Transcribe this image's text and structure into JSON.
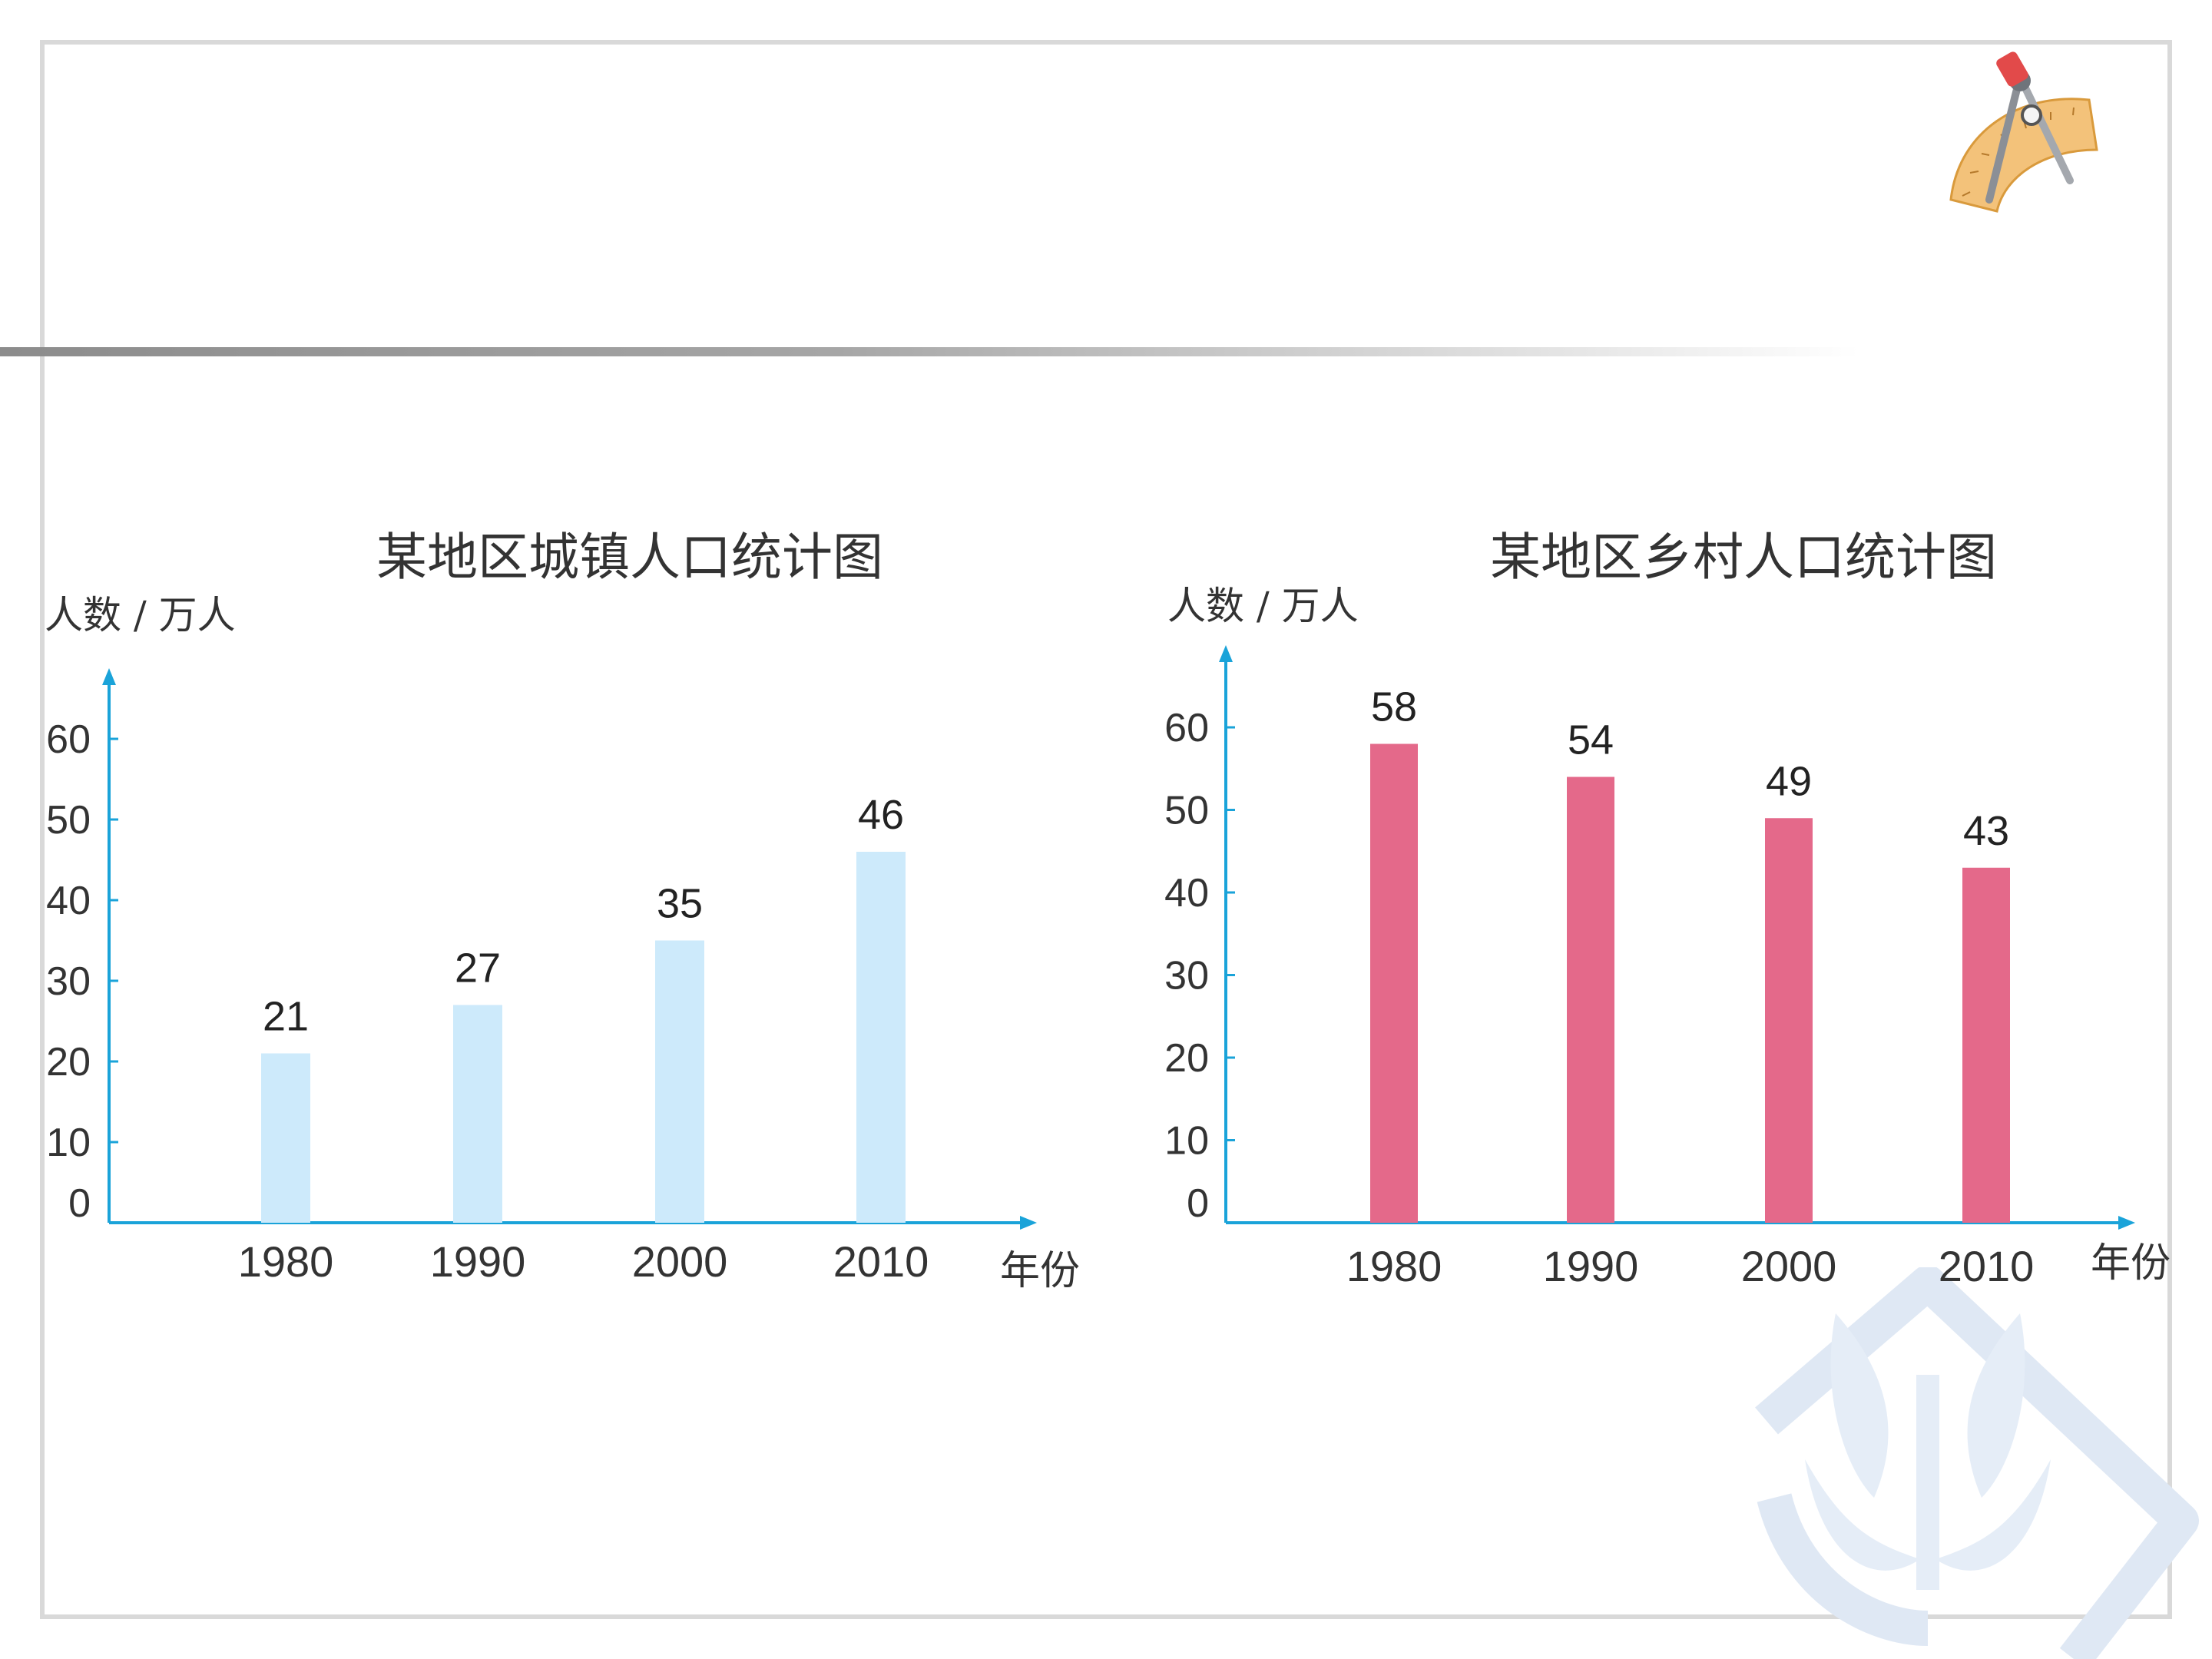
{
  "logo": {
    "icon": "compass-ruler-icon"
  },
  "watermark": {
    "icon": "hands-plant-emblem-icon"
  },
  "chart_data": [
    {
      "type": "bar",
      "title": "某地区城镇人口统计图",
      "ylabel": "人数 / 万人",
      "xlabel": "年份",
      "categories": [
        "1980",
        "1990",
        "2000",
        "2010"
      ],
      "values": [
        21,
        27,
        35,
        46
      ],
      "data_labels": [
        "21",
        "27",
        "35",
        "46"
      ],
      "yticks": [
        "0",
        "10",
        "20",
        "30",
        "40",
        "50",
        "60"
      ],
      "ylim": [
        0,
        60
      ],
      "grid": false,
      "legend": "none",
      "bar_color": "#cdeafb",
      "axis_color": "#1aa3d9"
    },
    {
      "type": "bar",
      "title": "某地区乡村人口统计图",
      "ylabel": "人数 / 万人",
      "xlabel": "年份",
      "categories": [
        "1980",
        "1990",
        "2000",
        "2010"
      ],
      "values": [
        58,
        54,
        49,
        43
      ],
      "data_labels": [
        "58",
        "54",
        "49",
        "43"
      ],
      "yticks": [
        "0",
        "10",
        "20",
        "30",
        "40",
        "50",
        "60"
      ],
      "ylim": [
        0,
        60
      ],
      "grid": false,
      "legend": "none",
      "bar_color": "#e4698a",
      "axis_color": "#1aa3d9"
    }
  ]
}
